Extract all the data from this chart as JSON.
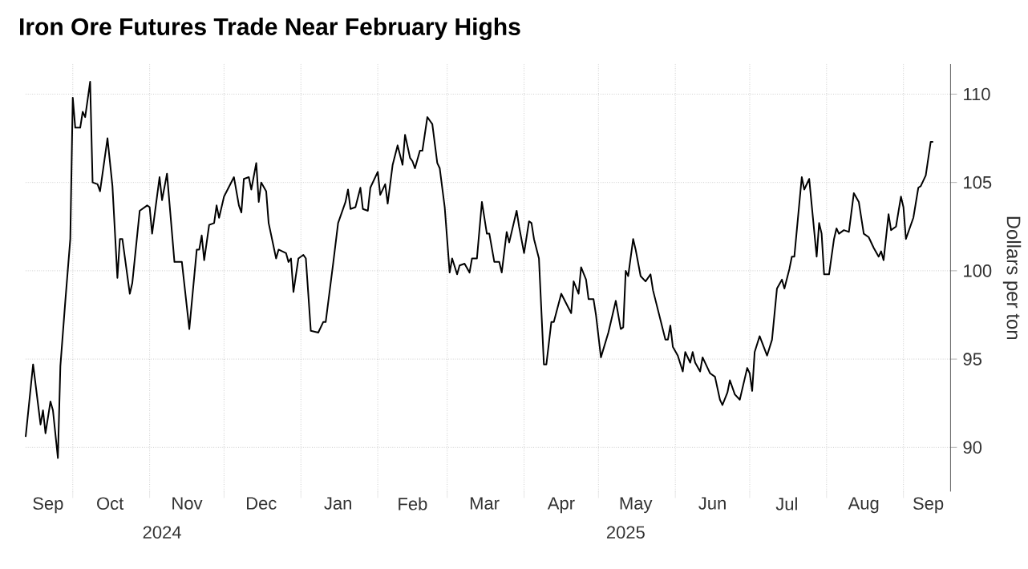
{
  "chart_data": {
    "type": "line",
    "title": "Iron Ore Futures Trade Near February Highs",
    "ylabel": "Dollars per ton",
    "color": "#000000",
    "grid": true,
    "xlim": [
      "2024-09-12",
      "2025-09-20"
    ],
    "ylim": [
      87.5,
      111.7
    ],
    "yticks": [
      90,
      95,
      100,
      105,
      110
    ],
    "xticks": [
      {
        "value": "2024-10-01",
        "label": null
      },
      {
        "value": "2024-11-01",
        "label": null
      },
      {
        "value": "2024-12-01",
        "label": null
      },
      {
        "value": "2025-01-01",
        "label": null
      },
      {
        "value": "2025-02-01",
        "label": null
      },
      {
        "value": "2025-03-01",
        "label": null
      },
      {
        "value": "2025-04-01",
        "label": null
      },
      {
        "value": "2025-05-01",
        "label": null
      },
      {
        "value": "2025-06-01",
        "label": null
      },
      {
        "value": "2025-07-01",
        "label": null
      },
      {
        "value": "2025-08-01",
        "label": null
      },
      {
        "value": "2025-09-01",
        "label": null
      },
      {
        "value": "2024-09-21",
        "label": "Sep"
      },
      {
        "value": "2024-10-16",
        "label": "Oct"
      },
      {
        "value": "2024-11-16",
        "label": "Nov"
      },
      {
        "value": "2024-12-16",
        "label": "Dec"
      },
      {
        "value": "2025-01-16",
        "label": "Jan"
      },
      {
        "value": "2025-02-15",
        "label": "Feb"
      },
      {
        "value": "2025-03-16",
        "label": "Mar"
      },
      {
        "value": "2025-04-16",
        "label": "Apr"
      },
      {
        "value": "2025-05-16",
        "label": "May"
      },
      {
        "value": "2025-06-16",
        "label": "Jun"
      },
      {
        "value": "2025-07-16",
        "label": "Jul"
      },
      {
        "value": "2025-08-16",
        "label": "Aug"
      },
      {
        "value": "2025-09-11",
        "label": "Sep"
      }
    ],
    "annotations": [
      "2024",
      "2025"
    ],
    "x": [
      "2024-09-12",
      "2024-09-15",
      "2024-09-18",
      "2024-09-19",
      "2024-09-20",
      "2024-09-22",
      "2024-09-23",
      "2024-09-25",
      "2024-09-26",
      "2024-09-28",
      "2024-09-30",
      "2024-10-01",
      "2024-10-02",
      "2024-10-04",
      "2024-10-05",
      "2024-10-06",
      "2024-10-08",
      "2024-10-09",
      "2024-10-11",
      "2024-10-12",
      "2024-10-15",
      "2024-10-17",
      "2024-10-19",
      "2024-10-20",
      "2024-10-21",
      "2024-10-24",
      "2024-10-25",
      "2024-10-28",
      "2024-10-31",
      "2024-11-01",
      "2024-11-02",
      "2024-11-05",
      "2024-11-06",
      "2024-11-08",
      "2024-11-11",
      "2024-11-14",
      "2024-11-17",
      "2024-11-20",
      "2024-11-21",
      "2024-11-22",
      "2024-11-23",
      "2024-11-25",
      "2024-11-27",
      "2024-11-28",
      "2024-11-29",
      "2024-12-01",
      "2024-12-05",
      "2024-12-07",
      "2024-12-08",
      "2024-12-09",
      "2024-12-11",
      "2024-12-12",
      "2024-12-14",
      "2024-12-15",
      "2024-12-16",
      "2024-12-18",
      "2024-12-19",
      "2024-12-22",
      "2024-12-23",
      "2024-12-26",
      "2024-12-27",
      "2024-12-28",
      "2024-12-29",
      "2024-12-31",
      "2025-01-02",
      "2025-01-03",
      "2025-01-05",
      "2025-01-08",
      "2025-01-10",
      "2025-01-11",
      "2025-01-14",
      "2025-01-16",
      "2025-01-19",
      "2025-01-20",
      "2025-01-21",
      "2025-01-23",
      "2025-01-25",
      "2025-01-26",
      "2025-01-28",
      "2025-01-29",
      "2025-02-01",
      "2025-02-02",
      "2025-02-04",
      "2025-02-05",
      "2025-02-07",
      "2025-02-09",
      "2025-02-11",
      "2025-02-12",
      "2025-02-14",
      "2025-02-15",
      "2025-02-16",
      "2025-02-18",
      "2025-02-19",
      "2025-02-21",
      "2025-02-22",
      "2025-02-23",
      "2025-02-25",
      "2025-02-26",
      "2025-02-28",
      "2025-03-02",
      "2025-03-03",
      "2025-03-05",
      "2025-03-06",
      "2025-03-08",
      "2025-03-10",
      "2025-03-11",
      "2025-03-13",
      "2025-03-15",
      "2025-03-17",
      "2025-03-18",
      "2025-03-20",
      "2025-03-22",
      "2025-03-23",
      "2025-03-25",
      "2025-03-26",
      "2025-03-29",
      "2025-03-30",
      "2025-04-01",
      "2025-04-03",
      "2025-04-04",
      "2025-04-05",
      "2025-04-07",
      "2025-04-09",
      "2025-04-10",
      "2025-04-12",
      "2025-04-13",
      "2025-04-16",
      "2025-04-20",
      "2025-04-21",
      "2025-04-23",
      "2025-04-24",
      "2025-04-26",
      "2025-04-27",
      "2025-04-29",
      "2025-04-30",
      "2025-05-02",
      "2025-05-05",
      "2025-05-08",
      "2025-05-10",
      "2025-05-11",
      "2025-05-12",
      "2025-05-13",
      "2025-05-15",
      "2025-05-16",
      "2025-05-18",
      "2025-05-20",
      "2025-05-22",
      "2025-05-23",
      "2025-05-28",
      "2025-05-29",
      "2025-05-30",
      "2025-05-31",
      "2025-06-02",
      "2025-06-04",
      "2025-06-05",
      "2025-06-07",
      "2025-06-08",
      "2025-06-09",
      "2025-06-11",
      "2025-06-12",
      "2025-06-14",
      "2025-06-15",
      "2025-06-17",
      "2025-06-19",
      "2025-06-20",
      "2025-06-22",
      "2025-06-23",
      "2025-06-25",
      "2025-06-27",
      "2025-06-30",
      "2025-07-01",
      "2025-07-02",
      "2025-07-03",
      "2025-07-05",
      "2025-07-08",
      "2025-07-10",
      "2025-07-12",
      "2025-07-14",
      "2025-07-15",
      "2025-07-17",
      "2025-07-18",
      "2025-07-19",
      "2025-07-22",
      "2025-07-23",
      "2025-07-25",
      "2025-07-28",
      "2025-07-29",
      "2025-07-30",
      "2025-07-31",
      "2025-08-02",
      "2025-08-04",
      "2025-08-05",
      "2025-08-06",
      "2025-08-08",
      "2025-08-10",
      "2025-08-12",
      "2025-08-14",
      "2025-08-16",
      "2025-08-18",
      "2025-08-20",
      "2025-08-22",
      "2025-08-23",
      "2025-08-24",
      "2025-08-26",
      "2025-08-27",
      "2025-08-29",
      "2025-08-31",
      "2025-09-01",
      "2025-09-02",
      "2025-09-05",
      "2025-09-07",
      "2025-09-08",
      "2025-09-10",
      "2025-09-12",
      "2025-09-13"
    ],
    "values": [
      90.6,
      94.7,
      91.3,
      92.1,
      90.8,
      92.6,
      92.1,
      89.4,
      94.6,
      98.3,
      101.8,
      109.8,
      108.1,
      108.1,
      109.0,
      108.7,
      110.7,
      105.0,
      104.9,
      104.5,
      107.5,
      104.8,
      99.6,
      101.8,
      101.8,
      98.7,
      99.3,
      103.4,
      103.7,
      103.6,
      102.1,
      105.3,
      104.0,
      105.5,
      100.5,
      100.5,
      96.7,
      101.2,
      101.2,
      102.0,
      100.6,
      102.6,
      102.7,
      103.7,
      103.0,
      104.2,
      105.3,
      103.7,
      103.3,
      105.2,
      105.3,
      104.6,
      106.1,
      103.9,
      105.0,
      104.5,
      102.7,
      100.7,
      101.2,
      101.0,
      100.5,
      100.7,
      98.8,
      100.7,
      100.9,
      100.7,
      96.6,
      96.5,
      97.1,
      97.1,
      100.4,
      102.7,
      103.9,
      104.6,
      103.5,
      103.6,
      104.7,
      103.5,
      103.4,
      104.7,
      105.6,
      104.3,
      104.9,
      103.8,
      106.0,
      107.1,
      106.0,
      107.7,
      106.4,
      106.2,
      105.8,
      106.8,
      106.8,
      108.7,
      108.5,
      108.3,
      106.1,
      105.8,
      103.6,
      99.9,
      100.7,
      99.8,
      100.3,
      100.4,
      99.9,
      100.7,
      100.7,
      103.9,
      102.1,
      102.1,
      100.5,
      100.5,
      99.9,
      102.2,
      101.6,
      103.4,
      102.5,
      101.0,
      102.8,
      102.7,
      101.8,
      100.7,
      94.7,
      94.7,
      97.1,
      97.1,
      98.7,
      97.6,
      99.4,
      98.7,
      100.2,
      99.5,
      98.4,
      98.4,
      97.5,
      95.1,
      96.5,
      98.3,
      96.7,
      96.8,
      100.0,
      99.7,
      101.8,
      101.2,
      99.7,
      99.4,
      99.8,
      98.9,
      96.1,
      96.1,
      96.9,
      95.7,
      95.2,
      94.3,
      95.4,
      94.8,
      95.4,
      94.8,
      94.3,
      95.1,
      94.5,
      94.2,
      94.0,
      92.7,
      92.4,
      93.1,
      93.8,
      93.0,
      92.7,
      94.5,
      94.2,
      93.2,
      95.4,
      96.3,
      95.2,
      96.1,
      99.0,
      99.5,
      99.0,
      100.1,
      100.8,
      100.8,
      105.3,
      104.6,
      105.2,
      100.8,
      102.7,
      102.1,
      99.8,
      99.8,
      101.8,
      102.4,
      102.1,
      102.3,
      102.2,
      104.4,
      103.9,
      102.1,
      101.9,
      101.3,
      100.8,
      101.1,
      100.6,
      103.2,
      102.3,
      102.5,
      104.2,
      103.6,
      101.8,
      103.0,
      104.7,
      104.8,
      105.4,
      107.3,
      107.3
    ]
  }
}
